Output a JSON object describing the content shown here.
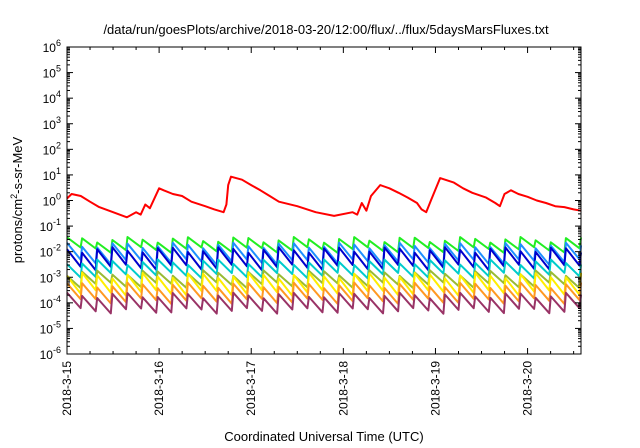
{
  "chart_data": {
    "type": "line",
    "title": "/data/run/goesPlots/archive/2018-03-20/12:00/flux/../flux/5daysMarsFluxes.txt",
    "xlabel": "Coordinated Universal Time (UTC)",
    "ylabel_main": "protons/cm",
    "ylabel_sup": "2",
    "ylabel_tail": "-s-sr-MeV",
    "yscale": "log",
    "ylim_exp": [
      -6,
      6
    ],
    "y_tick_exponents": [
      -6,
      -5,
      -4,
      -3,
      -2,
      -1,
      0,
      1,
      2,
      3,
      4,
      5,
      6
    ],
    "y_tick_base": "10",
    "x_ticks": [
      "2018-3-15",
      "2018-3-16",
      "2018-3-17",
      "2018-3-18",
      "2018-3-19",
      "2018-3-20"
    ],
    "xlim_days": [
      0,
      5.58
    ],
    "grid": false,
    "legend": "none",
    "series": [
      {
        "color": "#ff0000",
        "x": [
          0,
          0.05,
          0.15,
          0.25,
          0.35,
          0.5,
          0.65,
          0.75,
          0.8,
          0.85,
          0.9,
          1.0,
          1.05,
          1.15,
          1.25,
          1.35,
          1.5,
          1.6,
          1.7,
          1.73,
          1.75,
          1.78,
          1.9,
          2.0,
          2.1,
          2.2,
          2.3,
          2.5,
          2.7,
          2.9,
          3.1,
          3.15,
          3.2,
          3.25,
          3.3,
          3.4,
          3.5,
          3.6,
          3.7,
          3.8,
          3.85,
          3.9,
          3.95,
          4.05,
          4.2,
          4.3,
          4.4,
          4.55,
          4.65,
          4.7,
          4.75,
          4.82,
          4.9,
          5.0,
          5.1,
          5.2,
          5.3,
          5.4,
          5.5,
          5.58
        ],
        "y": [
          1.2,
          1.8,
          1.5,
          0.9,
          0.55,
          0.35,
          0.22,
          0.35,
          0.28,
          0.7,
          0.5,
          3.0,
          2.5,
          1.8,
          1.5,
          0.9,
          0.6,
          0.45,
          0.35,
          0.7,
          4.0,
          8.5,
          6.5,
          4.0,
          2.5,
          1.5,
          0.9,
          0.6,
          0.35,
          0.25,
          0.35,
          0.28,
          0.8,
          0.4,
          1.5,
          4.0,
          3.0,
          2.0,
          1.3,
          0.8,
          0.45,
          0.35,
          1.0,
          7.5,
          5.0,
          3.0,
          2.0,
          1.3,
          0.8,
          0.6,
          1.8,
          2.5,
          1.8,
          1.4,
          1.0,
          0.8,
          0.6,
          0.55,
          0.45,
          0.4
        ]
      },
      {
        "color": "#22ee22",
        "band": [
          0.03,
          0.012
        ]
      },
      {
        "color": "#1e90ff",
        "band": [
          0.018,
          0.004
        ]
      },
      {
        "color": "#0000cc",
        "band": [
          0.012,
          0.0025
        ]
      },
      {
        "color": "#00cccc",
        "band": [
          0.004,
          0.0012
        ]
      },
      {
        "color": "#99bb33",
        "band": [
          0.0015,
          0.0005
        ]
      },
      {
        "color": "#ffee00",
        "band": [
          0.0012,
          0.00025
        ]
      },
      {
        "color": "#ff9922",
        "band": [
          0.0005,
          0.00012
        ]
      },
      {
        "color": "#993366",
        "band": [
          0.0002,
          5e-05
        ]
      }
    ]
  }
}
